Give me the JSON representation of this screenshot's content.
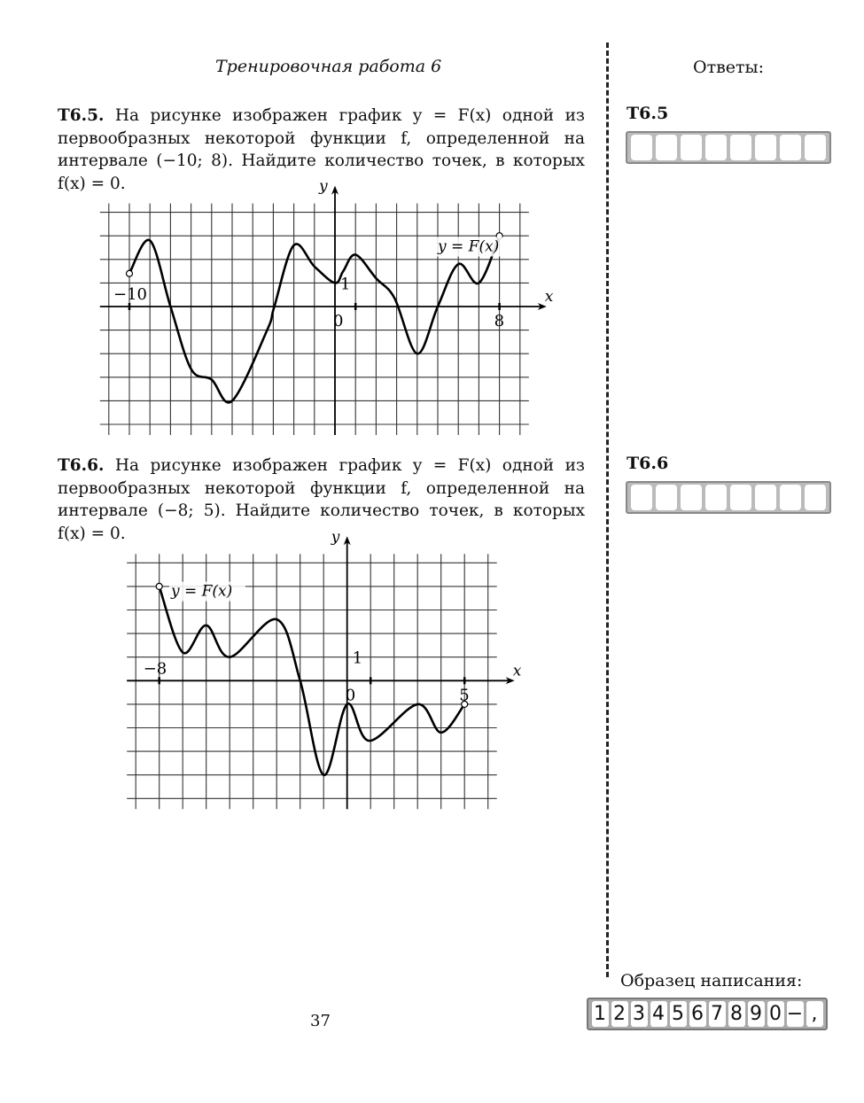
{
  "header": {
    "title": "Тренировочная работа 6",
    "answers_title": "Ответы:"
  },
  "tasks": [
    {
      "id": "T6.5.",
      "text": " На рисунке изображен график y = F(x) одной из первообразных некоторой функции f, определенной на интервале (−10; 8). Найдите количество точек, в которых f(x) = 0.",
      "answer_label": "T6.5"
    },
    {
      "id": "T6.6.",
      "text": " На рисунке изображен график y = F(x) одной из первообразных некоторой функции f, определенной на интервале (−8; 5). Найдите количество точек, в которых f(x) = 0.",
      "answer_label": "T6.6"
    }
  ],
  "sample": {
    "label": "Образец написания:",
    "chars": [
      "1",
      "2",
      "3",
      "4",
      "5",
      "6",
      "7",
      "8",
      "9",
      "0",
      "−",
      ","
    ]
  },
  "page_number": "37",
  "chart_data": [
    {
      "type": "line",
      "curve_label": "y = F(x)",
      "xlabel": "x",
      "ylabel": "y",
      "grid": true,
      "tick_labels": {
        "x_left": "−10",
        "x_right": "8",
        "origin": "0",
        "y_unit": "1"
      },
      "xlim": [
        -11,
        9
      ],
      "ylim": [
        -5,
        4
      ],
      "open_endpoints": true,
      "points": [
        [
          -10,
          1.4
        ],
        [
          -9,
          2.8
        ],
        [
          -8,
          0
        ],
        [
          -7,
          -2.65
        ],
        [
          -6,
          -3.1
        ],
        [
          -5,
          -4
        ],
        [
          -3.3,
          -1
        ],
        [
          -2.95,
          0
        ],
        [
          -2,
          2.6
        ],
        [
          -1,
          1.7
        ],
        [
          0,
          1
        ],
        [
          0.4,
          1.5
        ],
        [
          1,
          2.2
        ],
        [
          2,
          1.2
        ],
        [
          2.9,
          0.35
        ],
        [
          4,
          -2
        ],
        [
          5,
          0
        ],
        [
          6,
          1.8
        ],
        [
          7,
          1
        ],
        [
          8,
          3
        ]
      ]
    },
    {
      "type": "line",
      "curve_label": "y = F(x)",
      "xlabel": "x",
      "ylabel": "y",
      "grid": true,
      "tick_labels": {
        "x_left": "−8",
        "x_right": "5",
        "origin": "0",
        "y_unit": "1"
      },
      "xlim": [
        -9,
        6
      ],
      "ylim": [
        -5,
        5
      ],
      "open_endpoints": true,
      "points": [
        [
          -8,
          4
        ],
        [
          -7,
          1.2
        ],
        [
          -6,
          2.35
        ],
        [
          -5,
          1
        ],
        [
          -3,
          2.6
        ],
        [
          -2,
          0
        ],
        [
          -1,
          -4
        ],
        [
          0,
          -1
        ],
        [
          0.95,
          -2.55
        ],
        [
          3,
          -1
        ],
        [
          4,
          -2.2
        ],
        [
          5,
          -1
        ]
      ]
    }
  ]
}
